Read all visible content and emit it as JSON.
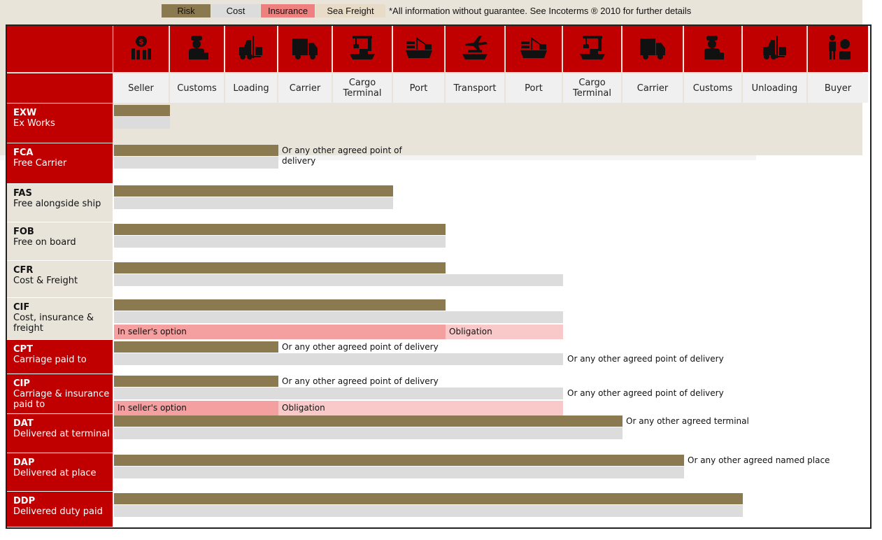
{
  "legend": {
    "risk": "Risk",
    "cost": "Cost",
    "insurance": "Insurance",
    "sea_freight": "Sea Freight",
    "disclaimer": "*All information without guarantee. See Incoterms ® 2010 for further details"
  },
  "colors": {
    "brand_red": "#c00000",
    "risk": "#8b7a4f",
    "cost": "#dcdcdc",
    "insurance_option": "#f4a0a0",
    "insurance_obligation": "#f9c9c9",
    "sea_freight": "#e8e4da"
  },
  "stages": [
    {
      "label": "Seller",
      "icon": "seller-money-icon"
    },
    {
      "label": "Customs",
      "icon": "customs-officer-icon"
    },
    {
      "label": "Loading",
      "icon": "forklift-icon"
    },
    {
      "label": "Carrier",
      "icon": "truck-icon"
    },
    {
      "label": "Cargo Terminal",
      "icon": "crane-icon"
    },
    {
      "label": "Port",
      "icon": "port-ship-icon"
    },
    {
      "label": "Transport",
      "icon": "plane-ship-icon"
    },
    {
      "label": "Port",
      "icon": "port-ship-icon"
    },
    {
      "label": "Cargo Terminal",
      "icon": "crane-icon"
    },
    {
      "label": "Carrier",
      "icon": "truck-icon"
    },
    {
      "label": "Customs",
      "icon": "customs-officer-icon"
    },
    {
      "label": "Unloading",
      "icon": "forklift-icon"
    },
    {
      "label": "Buyer",
      "icon": "buyer-money-icon"
    }
  ],
  "terms": [
    {
      "code": "EXW",
      "name": "Ex Works",
      "sea": false,
      "risk_until": 0,
      "cost_until": 0
    },
    {
      "code": "FCA",
      "name": "Free Carrier",
      "sea": false,
      "risk_until": 2,
      "cost_until": 2,
      "risk_note": "Or any other agreed point of delivery"
    },
    {
      "code": "FAS",
      "name": "Free alongside ship",
      "sea": true,
      "risk_until": 4,
      "cost_until": 4
    },
    {
      "code": "FOB",
      "name": "Free on board",
      "sea": true,
      "risk_until": 5,
      "cost_until": 5
    },
    {
      "code": "CFR",
      "name": "Cost & Freight",
      "sea": true,
      "risk_until": 5,
      "cost_until": 7
    },
    {
      "code": "CIF",
      "name": "Cost, insurance & freight",
      "sea": true,
      "risk_until": 5,
      "cost_until": 7,
      "insurance": {
        "option_until": 5,
        "obligation_until": 7,
        "option_label": "In seller's option",
        "obligation_label": "Obligation"
      }
    },
    {
      "code": "CPT",
      "name": "Carriage paid to",
      "sea": false,
      "risk_until": 2,
      "cost_until": 7,
      "risk_note": "Or any other agreed point of delivery",
      "cost_note": "Or any other agreed point of delivery"
    },
    {
      "code": "CIP",
      "name": "Carriage & insurance paid to",
      "sea": false,
      "risk_until": 2,
      "cost_until": 7,
      "risk_note": "Or any other agreed point of delivery",
      "cost_note": "Or any other agreed point of delivery",
      "insurance": {
        "option_until": 2,
        "obligation_until": 7,
        "option_label": "In seller's option",
        "obligation_label": "Obligation"
      }
    },
    {
      "code": "DAT",
      "name": "Delivered at terminal",
      "sea": false,
      "risk_until": 8,
      "cost_until": 8,
      "risk_note": "Or any other agreed terminal"
    },
    {
      "code": "DAP",
      "name": "Delivered at place",
      "sea": false,
      "risk_until": 9,
      "cost_until": 9,
      "risk_note": "Or any other agreed named place"
    },
    {
      "code": "DDP",
      "name": "Delivered duty paid",
      "sea": false,
      "risk_until": 10,
      "cost_until": 10
    }
  ]
}
